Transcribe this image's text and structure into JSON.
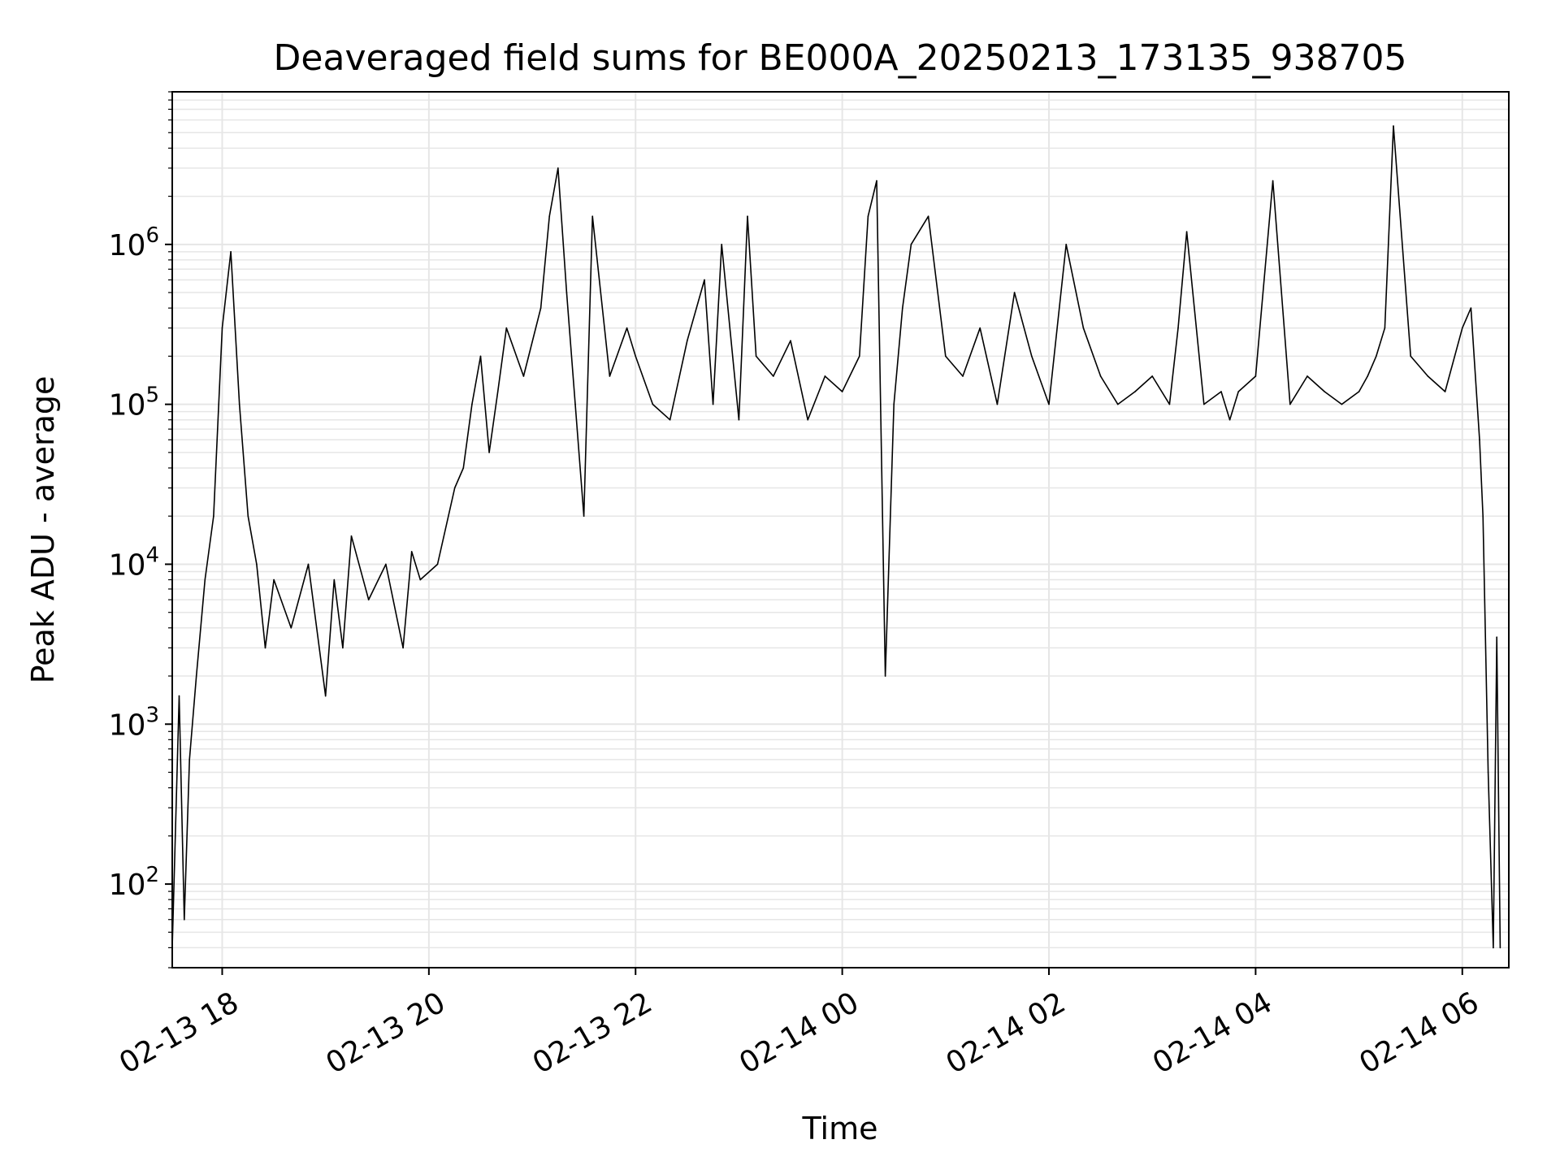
{
  "chart_data": {
    "type": "line",
    "title": "Deaveraged field sums for BE000A_20250213_173135_938705",
    "xlabel": "Time",
    "ylabel": "Peak ADU - average",
    "yscale": "log",
    "ylim": [
      30,
      9000000
    ],
    "xlim": [
      "2025-02-13 17:31",
      "2025-02-14 06:27"
    ],
    "grid": true,
    "line_color": "#000000",
    "grid_color": "#e6e6e6",
    "x_ticks": [
      {
        "label": "02-13 18",
        "value": "2025-02-13 18:00"
      },
      {
        "label": "02-13 20",
        "value": "2025-02-13 20:00"
      },
      {
        "label": "02-13 22",
        "value": "2025-02-13 22:00"
      },
      {
        "label": "02-14 00",
        "value": "2025-02-14 00:00"
      },
      {
        "label": "02-14 02",
        "value": "2025-02-14 02:00"
      },
      {
        "label": "02-14 04",
        "value": "2025-02-14 04:00"
      },
      {
        "label": "02-14 06",
        "value": "2025-02-14 06:00"
      }
    ],
    "y_ticks": [
      {
        "base": "10",
        "exp": "2",
        "value": 100
      },
      {
        "base": "10",
        "exp": "3",
        "value": 1000
      },
      {
        "base": "10",
        "exp": "4",
        "value": 10000
      },
      {
        "base": "10",
        "exp": "5",
        "value": 100000
      },
      {
        "base": "10",
        "exp": "6",
        "value": 1000000
      }
    ],
    "series": [
      {
        "x": [
          "2025-02-13 17:31",
          "2025-02-13 17:35",
          "2025-02-13 17:38",
          "2025-02-13 17:41",
          "2025-02-13 17:45",
          "2025-02-13 17:50",
          "2025-02-13 17:55",
          "2025-02-13 18:00",
          "2025-02-13 18:05",
          "2025-02-13 18:10",
          "2025-02-13 18:15",
          "2025-02-13 18:20",
          "2025-02-13 18:25",
          "2025-02-13 18:30",
          "2025-02-13 18:40",
          "2025-02-13 18:50",
          "2025-02-13 19:00",
          "2025-02-13 19:05",
          "2025-02-13 19:10",
          "2025-02-13 19:15",
          "2025-02-13 19:25",
          "2025-02-13 19:35",
          "2025-02-13 19:45",
          "2025-02-13 19:50",
          "2025-02-13 19:55",
          "2025-02-13 20:05",
          "2025-02-13 20:15",
          "2025-02-13 20:20",
          "2025-02-13 20:25",
          "2025-02-13 20:30",
          "2025-02-13 20:35",
          "2025-02-13 20:40",
          "2025-02-13 20:45",
          "2025-02-13 20:55",
          "2025-02-13 21:05",
          "2025-02-13 21:10",
          "2025-02-13 21:15",
          "2025-02-13 21:20",
          "2025-02-13 21:25",
          "2025-02-13 21:30",
          "2025-02-13 21:35",
          "2025-02-13 21:45",
          "2025-02-13 21:55",
          "2025-02-13 22:00",
          "2025-02-13 22:10",
          "2025-02-13 22:20",
          "2025-02-13 22:30",
          "2025-02-13 22:40",
          "2025-02-13 22:45",
          "2025-02-13 22:50",
          "2025-02-13 23:00",
          "2025-02-13 23:05",
          "2025-02-13 23:10",
          "2025-02-13 23:20",
          "2025-02-13 23:30",
          "2025-02-13 23:40",
          "2025-02-13 23:50",
          "2025-02-14 00:00",
          "2025-02-14 00:10",
          "2025-02-14 00:15",
          "2025-02-14 00:20",
          "2025-02-14 00:25",
          "2025-02-14 00:30",
          "2025-02-14 00:35",
          "2025-02-14 00:40",
          "2025-02-14 00:50",
          "2025-02-14 01:00",
          "2025-02-14 01:10",
          "2025-02-14 01:20",
          "2025-02-14 01:30",
          "2025-02-14 01:40",
          "2025-02-14 01:50",
          "2025-02-14 02:00",
          "2025-02-14 02:10",
          "2025-02-14 02:20",
          "2025-02-14 02:30",
          "2025-02-14 02:40",
          "2025-02-14 02:50",
          "2025-02-14 03:00",
          "2025-02-14 03:10",
          "2025-02-14 03:15",
          "2025-02-14 03:20",
          "2025-02-14 03:30",
          "2025-02-14 03:40",
          "2025-02-14 03:45",
          "2025-02-14 03:50",
          "2025-02-14 04:00",
          "2025-02-14 04:10",
          "2025-02-14 04:20",
          "2025-02-14 04:30",
          "2025-02-14 04:40",
          "2025-02-14 04:50",
          "2025-02-14 05:00",
          "2025-02-14 05:05",
          "2025-02-14 05:10",
          "2025-02-14 05:15",
          "2025-02-14 05:20",
          "2025-02-14 05:30",
          "2025-02-14 05:40",
          "2025-02-14 05:50",
          "2025-02-14 06:00",
          "2025-02-14 06:05",
          "2025-02-14 06:10",
          "2025-02-14 06:12",
          "2025-02-14 06:15",
          "2025-02-14 06:18",
          "2025-02-14 06:20",
          "2025-02-14 06:22"
        ],
        "y": [
          40,
          1500,
          60,
          600,
          2000,
          8000,
          20000,
          300000,
          900000,
          100000,
          20000,
          10000,
          3000,
          8000,
          4000,
          10000,
          1500,
          8000,
          3000,
          15000,
          6000,
          10000,
          3000,
          12000,
          8000,
          10000,
          30000,
          40000,
          100000,
          200000,
          50000,
          120000,
          300000,
          150000,
          400000,
          1500000,
          3000000,
          500000,
          100000,
          20000,
          1500000,
          150000,
          300000,
          200000,
          100000,
          80000,
          250000,
          600000,
          100000,
          1000000,
          80000,
          1500000,
          200000,
          150000,
          250000,
          80000,
          150000,
          120000,
          200000,
          1500000,
          2500000,
          2000,
          100000,
          400000,
          1000000,
          1500000,
          200000,
          150000,
          300000,
          100000,
          500000,
          200000,
          100000,
          1000000,
          300000,
          150000,
          100000,
          120000,
          150000,
          100000,
          300000,
          1200000,
          100000,
          120000,
          80000,
          120000,
          150000,
          2500000,
          100000,
          150000,
          120000,
          100000,
          120000,
          150000,
          200000,
          300000,
          5500000,
          200000,
          150000,
          120000,
          300000,
          400000,
          60000,
          20000,
          500,
          40,
          3500,
          40
        ]
      }
    ]
  }
}
